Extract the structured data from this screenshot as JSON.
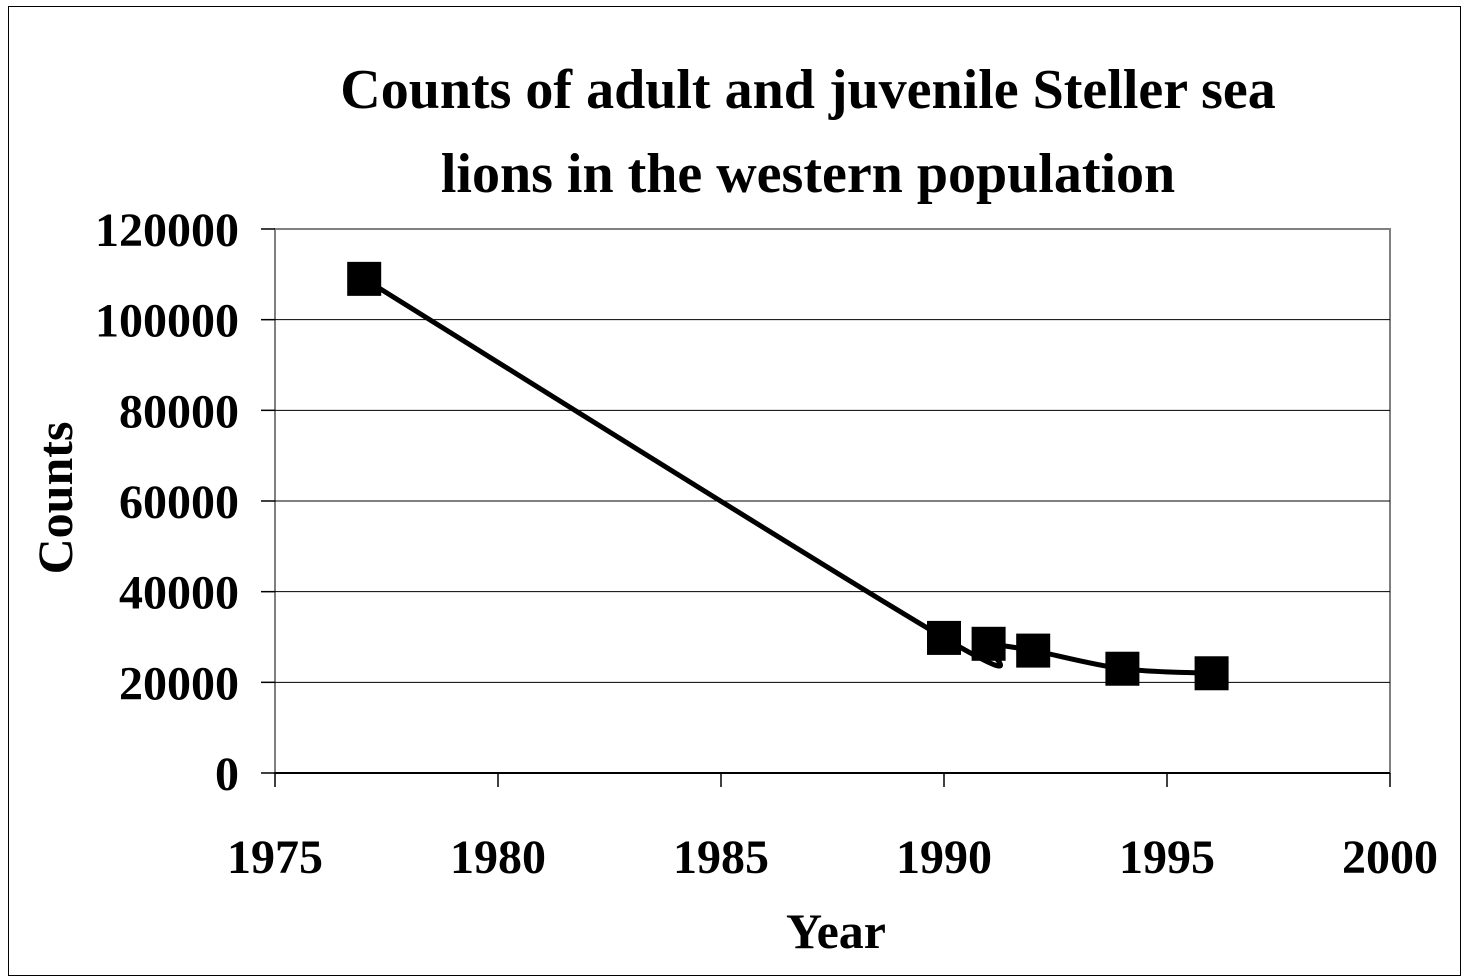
{
  "chart_data": {
    "type": "line",
    "title_lines": [
      "Counts of adult and juvenile Steller sea",
      "lions in the western population"
    ],
    "xlabel": "Year",
    "ylabel": "Counts",
    "xlim": [
      1975,
      2000
    ],
    "ylim": [
      0,
      120000
    ],
    "x_ticks": [
      "1975",
      "1980",
      "1985",
      "1990",
      "1995",
      "2000"
    ],
    "y_ticks": [
      "0",
      "20000",
      "40000",
      "60000",
      "80000",
      "100000",
      "120000"
    ],
    "grid": "horizontal",
    "legend": "none",
    "series": [
      {
        "marker": "square",
        "color": "#000000",
        "points": [
          {
            "x": 1977,
            "y": 109000
          },
          {
            "x": 1990,
            "y": 29800
          },
          {
            "x": 1991,
            "y": 28500
          },
          {
            "x": 1992,
            "y": 27000
          },
          {
            "x": 1994,
            "y": 23000
          },
          {
            "x": 1996,
            "y": 22000
          }
        ]
      }
    ]
  }
}
